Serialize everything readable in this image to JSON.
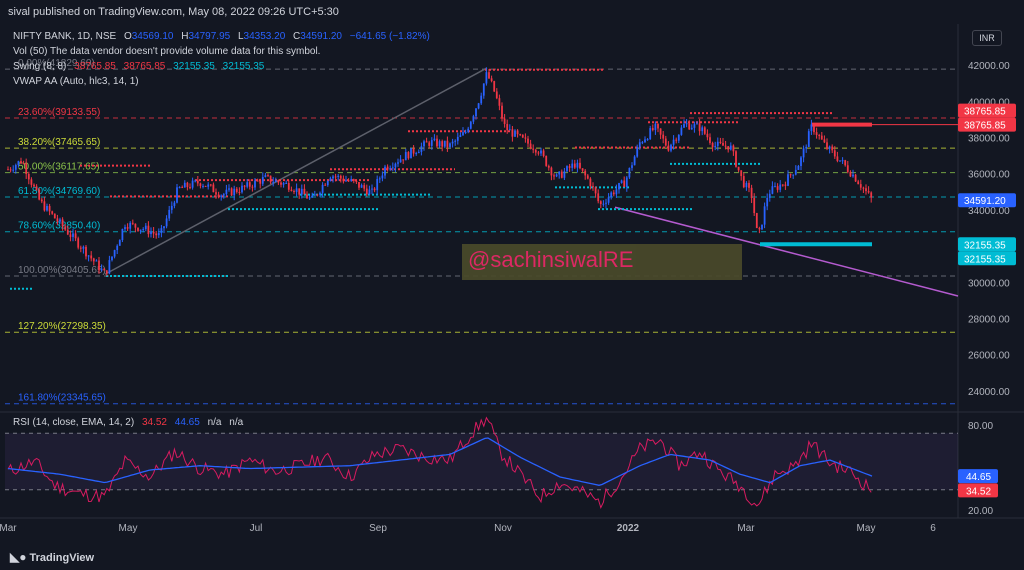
{
  "header": {
    "published": "sival published on TradingView.com, May 08, 2022 09:26 UTC+5:30",
    "currency": "INR"
  },
  "footer": {
    "brand": "TradingView"
  },
  "watermark": "@sachinsiwalRE",
  "legend": {
    "symbol": "NIFTY BANK, 1D, NSE",
    "o_label": "O",
    "o": "34569.10",
    "h_label": "H",
    "h": "34797.95",
    "l_label": "L",
    "l": "34353.20",
    "c_label": "C",
    "c": "34591.20",
    "change": "−641.65 (−1.82%)",
    "vol": "Vol (50)  The data vendor doesn't provide volume data for this symbol.",
    "swing_label": "Swing (8, 8)",
    "swing_values": [
      "38765.85",
      "38765.85",
      "32155.35",
      "32155.35"
    ],
    "vwap": "VWAP AA (Auto, hlc3, 14, 1)",
    "rsi_label": "RSI (14, close, EMA, 14, 2)",
    "rsi_v1": "34.52",
    "rsi_v2": "44.65",
    "rsi_na1": "n/a",
    "rsi_na2": "n/a"
  },
  "colors": {
    "bg": "#131722",
    "up": "#2962ff",
    "down": "#f23645",
    "grid": "#2a2e39",
    "rsi_line": "#d81b60",
    "rsi_ma": "#2962ff",
    "trend": "#b45bcf",
    "cyan": "#00bcd4",
    "fib_red": "#f23645",
    "fib_green": "#8bc34a",
    "fib_yellow": "#cddc39",
    "fib_gray": "#787b86"
  },
  "chart_data": {
    "type": "candlestick",
    "price_axis": {
      "ticks": [
        "42000.00",
        "40000.00",
        "38000.00",
        "36000.00",
        "34000.00",
        "30000.00",
        "28000.00",
        "26000.00",
        "24000.00"
      ],
      "range": [
        23000,
        43000
      ]
    },
    "rsi_axis": {
      "ticks": [
        "80.00",
        "20.00"
      ],
      "range": [
        15,
        90
      ],
      "band": [
        40,
        60
      ]
    },
    "time_axis": [
      "Mar",
      "May",
      "Jul",
      "Sep",
      "Nov",
      "2022",
      "Mar",
      "May",
      "6"
    ],
    "badges": [
      {
        "label": "38765.85",
        "value": 38765.85,
        "color": "#f23645"
      },
      {
        "label": "38765.85",
        "value": 38765.85,
        "color": "#f23645"
      },
      {
        "label": "34591.20",
        "value": 34591.2,
        "color": "#2962ff"
      },
      {
        "label": "32155.35",
        "value": 32155.35,
        "color": "#00bcd4"
      },
      {
        "label": "32155.35",
        "value": 32155.35,
        "color": "#00bcd4"
      }
    ],
    "rsi_badges": [
      {
        "label": "44.65",
        "value": 44.65,
        "color": "#2962ff"
      },
      {
        "label": "34.52",
        "value": 34.52,
        "color": "#f23645"
      }
    ],
    "fib_levels": [
      {
        "label": "0.00%(41829.60)",
        "value": 41829.6,
        "color": "#787b86"
      },
      {
        "label": "23.60%(39133.55)",
        "value": 39133.55,
        "color": "#f23645"
      },
      {
        "label": "38.20%(37465.65)",
        "value": 37465.65,
        "color": "#cddc39"
      },
      {
        "label": "50.00%(36117.65)",
        "value": 36117.65,
        "color": "#8bc34a"
      },
      {
        "label": "61.80%(34769.60)",
        "value": 34769.6,
        "color": "#00bcd4"
      },
      {
        "label": "78.60%(32850.40)",
        "value": 32850.4,
        "color": "#00bcd4"
      },
      {
        "label": "100.00%(30405.65)",
        "value": 30405.65,
        "color": "#787b86"
      },
      {
        "label": "127.20%(27298.35)",
        "value": 27298.35,
        "color": "#cddc39"
      },
      {
        "label": "161.80%(23345.65)",
        "value": 23345.65,
        "color": "#2962ff"
      }
    ],
    "swing_highs": [
      {
        "from": 80,
        "to": 150,
        "value": 36500
      },
      {
        "from": 110,
        "to": 230,
        "value": 34800
      },
      {
        "from": 195,
        "to": 370,
        "value": 35700
      },
      {
        "from": 330,
        "to": 455,
        "value": 36300
      },
      {
        "from": 408,
        "to": 510,
        "value": 38400
      },
      {
        "from": 485,
        "to": 605,
        "value": 41800
      },
      {
        "from": 575,
        "to": 690,
        "value": 37500
      },
      {
        "from": 648,
        "to": 740,
        "value": 38900
      },
      {
        "from": 690,
        "to": 832,
        "value": 39400
      },
      {
        "from": 812,
        "to": 872,
        "value": 38765.85
      }
    ],
    "swing_lows": [
      {
        "from": 10,
        "to": 32,
        "value": 29700
      },
      {
        "from": 106,
        "to": 230,
        "value": 30400
      },
      {
        "from": 228,
        "to": 380,
        "value": 34100
      },
      {
        "from": 300,
        "to": 430,
        "value": 34900
      },
      {
        "from": 555,
        "to": 630,
        "value": 35300
      },
      {
        "from": 598,
        "to": 692,
        "value": 34100
      },
      {
        "from": 670,
        "to": 760,
        "value": 36600
      },
      {
        "from": 760,
        "to": 872,
        "value": 32155.35
      }
    ],
    "trendlines": [
      {
        "x1": 105,
        "y1": 30500,
        "x2": 487,
        "y2": 41900,
        "color": "#5d606b"
      },
      {
        "x1": 615,
        "y1": 34200,
        "x2": 958,
        "y2": 29300,
        "color": "#b45bcf"
      }
    ],
    "anchors": [
      {
        "x": 8,
        "value": 36300
      },
      {
        "x": 22,
        "value": 36800
      },
      {
        "x": 40,
        "value": 34500
      },
      {
        "x": 60,
        "value": 33300
      },
      {
        "x": 85,
        "value": 31800
      },
      {
        "x": 105,
        "value": 30500
      },
      {
        "x": 125,
        "value": 33300
      },
      {
        "x": 145,
        "value": 33000
      },
      {
        "x": 160,
        "value": 32600
      },
      {
        "x": 178,
        "value": 35200
      },
      {
        "x": 200,
        "value": 35600
      },
      {
        "x": 222,
        "value": 34900
      },
      {
        "x": 245,
        "value": 35300
      },
      {
        "x": 265,
        "value": 35800
      },
      {
        "x": 290,
        "value": 35400
      },
      {
        "x": 312,
        "value": 34600
      },
      {
        "x": 330,
        "value": 36000
      },
      {
        "x": 352,
        "value": 35600
      },
      {
        "x": 372,
        "value": 35000
      },
      {
        "x": 385,
        "value": 36400
      },
      {
        "x": 410,
        "value": 37200
      },
      {
        "x": 430,
        "value": 37800
      },
      {
        "x": 450,
        "value": 37600
      },
      {
        "x": 465,
        "value": 38300
      },
      {
        "x": 478,
        "value": 40000
      },
      {
        "x": 487,
        "value": 41600
      },
      {
        "x": 495,
        "value": 40500
      },
      {
        "x": 505,
        "value": 38600
      },
      {
        "x": 520,
        "value": 38000
      },
      {
        "x": 538,
        "value": 37400
      },
      {
        "x": 556,
        "value": 35800
      },
      {
        "x": 575,
        "value": 36600
      },
      {
        "x": 590,
        "value": 35600
      },
      {
        "x": 600,
        "value": 34300
      },
      {
        "x": 612,
        "value": 35000
      },
      {
        "x": 625,
        "value": 35600
      },
      {
        "x": 640,
        "value": 37800
      },
      {
        "x": 655,
        "value": 38600
      },
      {
        "x": 668,
        "value": 37500
      },
      {
        "x": 685,
        "value": 38800
      },
      {
        "x": 700,
        "value": 38600
      },
      {
        "x": 715,
        "value": 37600
      },
      {
        "x": 730,
        "value": 37600
      },
      {
        "x": 742,
        "value": 35700
      },
      {
        "x": 752,
        "value": 34800
      },
      {
        "x": 758,
        "value": 32400
      },
      {
        "x": 768,
        "value": 35000
      },
      {
        "x": 785,
        "value": 35600
      },
      {
        "x": 800,
        "value": 36700
      },
      {
        "x": 812,
        "value": 38700
      },
      {
        "x": 825,
        "value": 37600
      },
      {
        "x": 840,
        "value": 36800
      },
      {
        "x": 856,
        "value": 35800
      },
      {
        "x": 872,
        "value": 34600
      }
    ],
    "rsi_anchors": [
      {
        "x": 8,
        "value": 48
      },
      {
        "x": 35,
        "value": 55
      },
      {
        "x": 55,
        "value": 38
      },
      {
        "x": 80,
        "value": 32
      },
      {
        "x": 105,
        "value": 30
      },
      {
        "x": 125,
        "value": 55
      },
      {
        "x": 150,
        "value": 44
      },
      {
        "x": 175,
        "value": 62
      },
      {
        "x": 200,
        "value": 50
      },
      {
        "x": 225,
        "value": 46
      },
      {
        "x": 250,
        "value": 56
      },
      {
        "x": 275,
        "value": 48
      },
      {
        "x": 300,
        "value": 52
      },
      {
        "x": 325,
        "value": 58
      },
      {
        "x": 350,
        "value": 44
      },
      {
        "x": 375,
        "value": 60
      },
      {
        "x": 400,
        "value": 64
      },
      {
        "x": 425,
        "value": 58
      },
      {
        "x": 450,
        "value": 56
      },
      {
        "x": 470,
        "value": 74
      },
      {
        "x": 487,
        "value": 86
      },
      {
        "x": 500,
        "value": 62
      },
      {
        "x": 520,
        "value": 46
      },
      {
        "x": 540,
        "value": 30
      },
      {
        "x": 560,
        "value": 40
      },
      {
        "x": 580,
        "value": 34
      },
      {
        "x": 600,
        "value": 26
      },
      {
        "x": 620,
        "value": 42
      },
      {
        "x": 640,
        "value": 64
      },
      {
        "x": 660,
        "value": 70
      },
      {
        "x": 680,
        "value": 52
      },
      {
        "x": 700,
        "value": 62
      },
      {
        "x": 720,
        "value": 48
      },
      {
        "x": 740,
        "value": 38
      },
      {
        "x": 758,
        "value": 24
      },
      {
        "x": 775,
        "value": 46
      },
      {
        "x": 795,
        "value": 52
      },
      {
        "x": 812,
        "value": 68
      },
      {
        "x": 830,
        "value": 54
      },
      {
        "x": 850,
        "value": 48
      },
      {
        "x": 872,
        "value": 34.52
      }
    ],
    "rsi_ma_anchors": [
      {
        "x": 8,
        "value": 50
      },
      {
        "x": 60,
        "value": 46
      },
      {
        "x": 105,
        "value": 40
      },
      {
        "x": 150,
        "value": 49
      },
      {
        "x": 200,
        "value": 52
      },
      {
        "x": 250,
        "value": 50
      },
      {
        "x": 300,
        "value": 51
      },
      {
        "x": 350,
        "value": 52
      },
      {
        "x": 400,
        "value": 56
      },
      {
        "x": 450,
        "value": 60
      },
      {
        "x": 487,
        "value": 72
      },
      {
        "x": 520,
        "value": 58
      },
      {
        "x": 560,
        "value": 44
      },
      {
        "x": 600,
        "value": 38
      },
      {
        "x": 640,
        "value": 52
      },
      {
        "x": 670,
        "value": 60
      },
      {
        "x": 710,
        "value": 56
      },
      {
        "x": 740,
        "value": 46
      },
      {
        "x": 770,
        "value": 40
      },
      {
        "x": 800,
        "value": 52
      },
      {
        "x": 830,
        "value": 56
      },
      {
        "x": 872,
        "value": 44.65
      }
    ],
    "time_tick_x": [
      8,
      128,
      256,
      378,
      503,
      628,
      746,
      866,
      933
    ]
  }
}
